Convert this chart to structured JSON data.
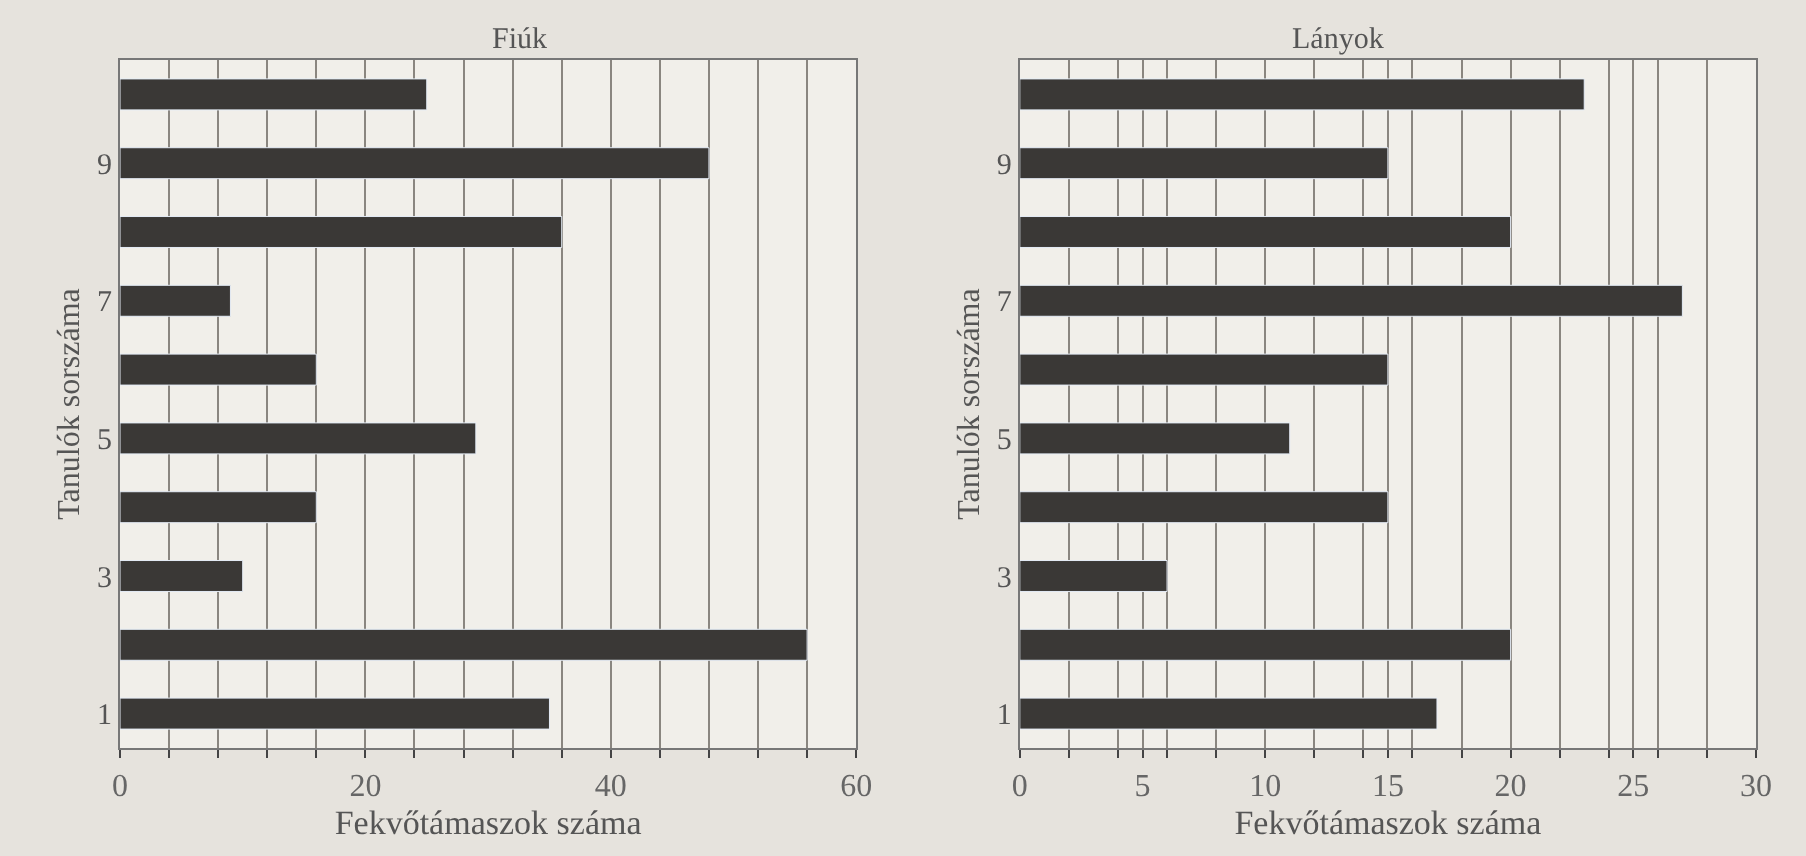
{
  "chart_data": [
    {
      "type": "bar",
      "orientation": "horizontal",
      "title": "Fiúk",
      "xlabel": "Fekvőtámaszok száma",
      "ylabel": "Tanulók sorszáma",
      "categories": [
        null,
        "9",
        null,
        "7",
        null,
        "5",
        null,
        "3",
        null,
        "1"
      ],
      "values": [
        25,
        48,
        36,
        9,
        16,
        29,
        16,
        10,
        56,
        35
      ],
      "color": "#3a3836",
      "xlim": [
        0,
        60
      ],
      "xticks": [
        0,
        {
          "value": 4,
          "label": null
        },
        {
          "value": 8,
          "label": null
        },
        {
          "value": 12,
          "label": null
        },
        {
          "value": 16,
          "label": null
        },
        20,
        {
          "value": 24,
          "label": null
        },
        {
          "value": 28,
          "label": null
        },
        {
          "value": 32,
          "label": null
        },
        {
          "value": 36,
          "label": null
        },
        40,
        {
          "value": 44,
          "label": null
        },
        {
          "value": 48,
          "label": null
        },
        {
          "value": 52,
          "label": null
        },
        {
          "value": 56,
          "label": null
        },
        60
      ],
      "grid": "x"
    },
    {
      "type": "bar",
      "orientation": "horizontal",
      "title": "Lányok",
      "xlabel": "Fekvőtámaszok száma",
      "ylabel": "Tanulók sorszáma",
      "categories": [
        null,
        "9",
        null,
        "7",
        null,
        "5",
        null,
        "3",
        null,
        "1"
      ],
      "values": [
        23,
        15,
        20,
        27,
        15,
        11,
        15,
        6,
        20,
        17
      ],
      "color": "#3a3836",
      "xlim": [
        0,
        30
      ],
      "xticks": [
        0,
        {
          "value": 2,
          "label": null
        },
        {
          "value": 4,
          "label": null
        },
        5,
        {
          "value": 6,
          "label": null
        },
        {
          "value": 8,
          "label": null
        },
        10,
        {
          "value": 12,
          "label": null
        },
        {
          "value": 14,
          "label": null
        },
        15,
        {
          "value": 16,
          "label": null
        },
        {
          "value": 18,
          "label": null
        },
        20,
        {
          "value": 22,
          "label": null
        },
        {
          "value": 24,
          "label": null
        },
        25,
        {
          "value": 26,
          "label": null
        },
        {
          "value": 28,
          "label": null
        },
        30
      ],
      "grid": "x"
    }
  ]
}
